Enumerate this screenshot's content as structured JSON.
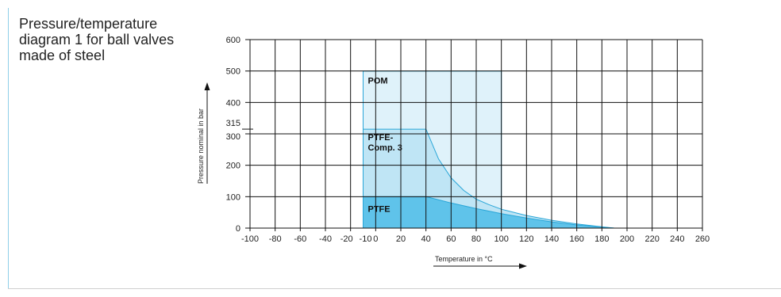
{
  "title_lines": [
    "Pressure/temperature",
    "diagram 1 for ball valves",
    "made of steel"
  ],
  "colors": {
    "accent_rule": "#8fcfe8",
    "pom_fill": "#dff2fa",
    "ptfe_comp_fill": "#bfe5f5",
    "ptfe_fill": "#5fc3ea",
    "curve_stroke": "#29a6d8",
    "grid": "#111111"
  },
  "chart_data": {
    "type": "area",
    "xlabel": "Temperature in °C",
    "ylabel": "Pressure nominal in bar",
    "xlim": [
      -100,
      260
    ],
    "ylim": [
      0,
      600
    ],
    "x_ticks": [
      -100,
      -80,
      -60,
      -40,
      -20,
      -10,
      0,
      20,
      40,
      60,
      80,
      100,
      120,
      140,
      160,
      180,
      200,
      220,
      240,
      260
    ],
    "x_tick_labels": [
      "-100",
      "-80",
      "-60",
      "-40",
      "-20",
      "-10",
      "0",
      "20",
      "40",
      "60",
      "80",
      "100",
      "120",
      "140",
      "160",
      "180",
      "200",
      "220",
      "240",
      "260"
    ],
    "y_ticks": [
      0,
      100,
      200,
      300,
      315,
      400,
      500,
      600
    ],
    "y_tick_labels": [
      "0",
      "100",
      "200",
      "300",
      "315",
      "400",
      "500",
      "600"
    ],
    "grid": true,
    "series": [
      {
        "name": "POM",
        "label": "POM",
        "fill": "#dff2fa",
        "x": [
          -10,
          -10,
          100,
          100
        ],
        "y": [
          0,
          500,
          500,
          0
        ]
      },
      {
        "name": "PTFE-Comp. 3",
        "label_lines": [
          "PTFE-",
          "Comp. 3"
        ],
        "fill": "#bfe5f5",
        "x": [
          -10,
          -10,
          40,
          50,
          60,
          70,
          80,
          90,
          100,
          120,
          140,
          160,
          180,
          190
        ],
        "y": [
          0,
          315,
          315,
          220,
          160,
          120,
          92,
          75,
          60,
          40,
          25,
          13,
          4,
          0
        ]
      },
      {
        "name": "PTFE",
        "label": "PTFE",
        "fill": "#5fc3ea",
        "x": [
          -10,
          -10,
          40,
          60,
          80,
          100,
          120,
          140,
          160,
          180,
          190
        ],
        "y": [
          0,
          100,
          100,
          80,
          62,
          46,
          32,
          20,
          10,
          3,
          0
        ]
      }
    ]
  }
}
